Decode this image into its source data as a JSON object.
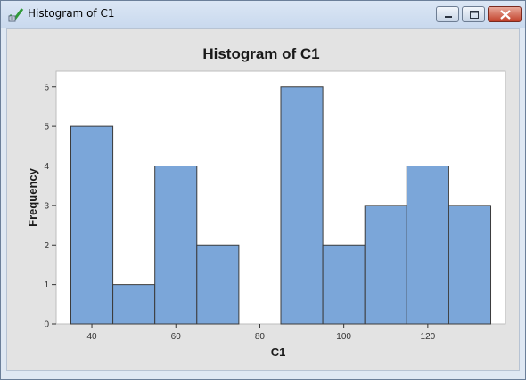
{
  "window": {
    "title": "Histogram of C1"
  },
  "icons": {
    "app_icon": "minitab-check-icon",
    "minimize": "minimize-icon",
    "maximize": "maximize-icon",
    "close": "close-icon"
  },
  "colors": {
    "bar_fill": "#7ba6d9",
    "bar_stroke": "#3b3b3b",
    "plot_bg": "#ffffff",
    "panel_bg": "#e3e3e3"
  },
  "chart_data": {
    "type": "bar",
    "title": "Histogram of C1",
    "xlabel": "C1",
    "ylabel": "Frequency",
    "bins": [
      {
        "from": 35,
        "to": 45,
        "count": 5
      },
      {
        "from": 45,
        "to": 55,
        "count": 1
      },
      {
        "from": 55,
        "to": 65,
        "count": 4
      },
      {
        "from": 65,
        "to": 75,
        "count": 2
      },
      {
        "from": 75,
        "to": 85,
        "count": 0
      },
      {
        "from": 85,
        "to": 95,
        "count": 6
      },
      {
        "from": 95,
        "to": 105,
        "count": 2
      },
      {
        "from": 105,
        "to": 115,
        "count": 3
      },
      {
        "from": 115,
        "to": 125,
        "count": 4
      },
      {
        "from": 125,
        "to": 135,
        "count": 3
      }
    ],
    "xlim": [
      31.5,
      138.5
    ],
    "ylim": [
      0,
      6.4
    ],
    "xticks": [
      40,
      60,
      80,
      100,
      120
    ],
    "yticks": [
      0,
      1,
      2,
      3,
      4,
      5,
      6
    ],
    "grid": false
  }
}
